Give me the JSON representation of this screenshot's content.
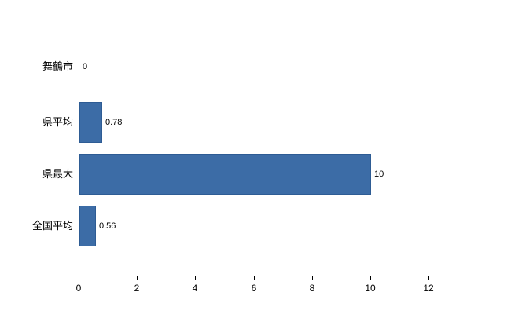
{
  "chart_data": {
    "type": "bar",
    "orientation": "horizontal",
    "title": "",
    "xlabel": "",
    "ylabel": "",
    "categories": [
      "舞鶴市",
      "県平均",
      "県最大",
      "全国平均"
    ],
    "values": [
      0,
      0.78,
      10,
      0.56
    ],
    "value_labels": [
      "0",
      "0.78",
      "10",
      "0.56"
    ],
    "xlim": [
      0,
      12
    ],
    "x_ticks": [
      0,
      2,
      4,
      6,
      8,
      10,
      12
    ],
    "x_tick_labels": [
      "0",
      "2",
      "4",
      "6",
      "8",
      "10",
      "12"
    ],
    "grid": false,
    "legend": "none",
    "bar_color": "#3c6ca6",
    "bar_border_color": "#2e5c94",
    "axis_color": "#000000",
    "background_color": "#ffffff"
  }
}
